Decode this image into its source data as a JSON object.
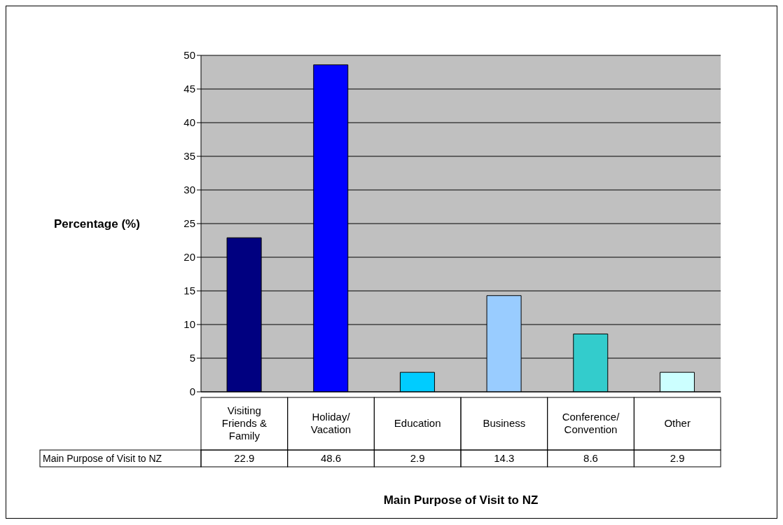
{
  "chart_data": {
    "type": "bar",
    "xlabel": "Main Purpose of Visit to NZ",
    "ylabel": "Percentage (%)",
    "categories": [
      "Visiting Friends & Family",
      "Holiday/ Vacation",
      "Education",
      "Business",
      "Conference/ Convention",
      "Other"
    ],
    "series": [
      {
        "name": "Main Purpose of Visit to NZ",
        "values": [
          22.9,
          48.6,
          2.9,
          14.3,
          8.6,
          2.9
        ],
        "colors": [
          "#000080",
          "#0000ff",
          "#00ccff",
          "#99ccff",
          "#33cccc",
          "#ccffff"
        ]
      }
    ],
    "ylim": [
      0,
      50
    ],
    "yticks": [
      0,
      5,
      10,
      15,
      20,
      25,
      30,
      35,
      40,
      45,
      50
    ],
    "grid": "y",
    "legend": false,
    "data_labels": true
  }
}
